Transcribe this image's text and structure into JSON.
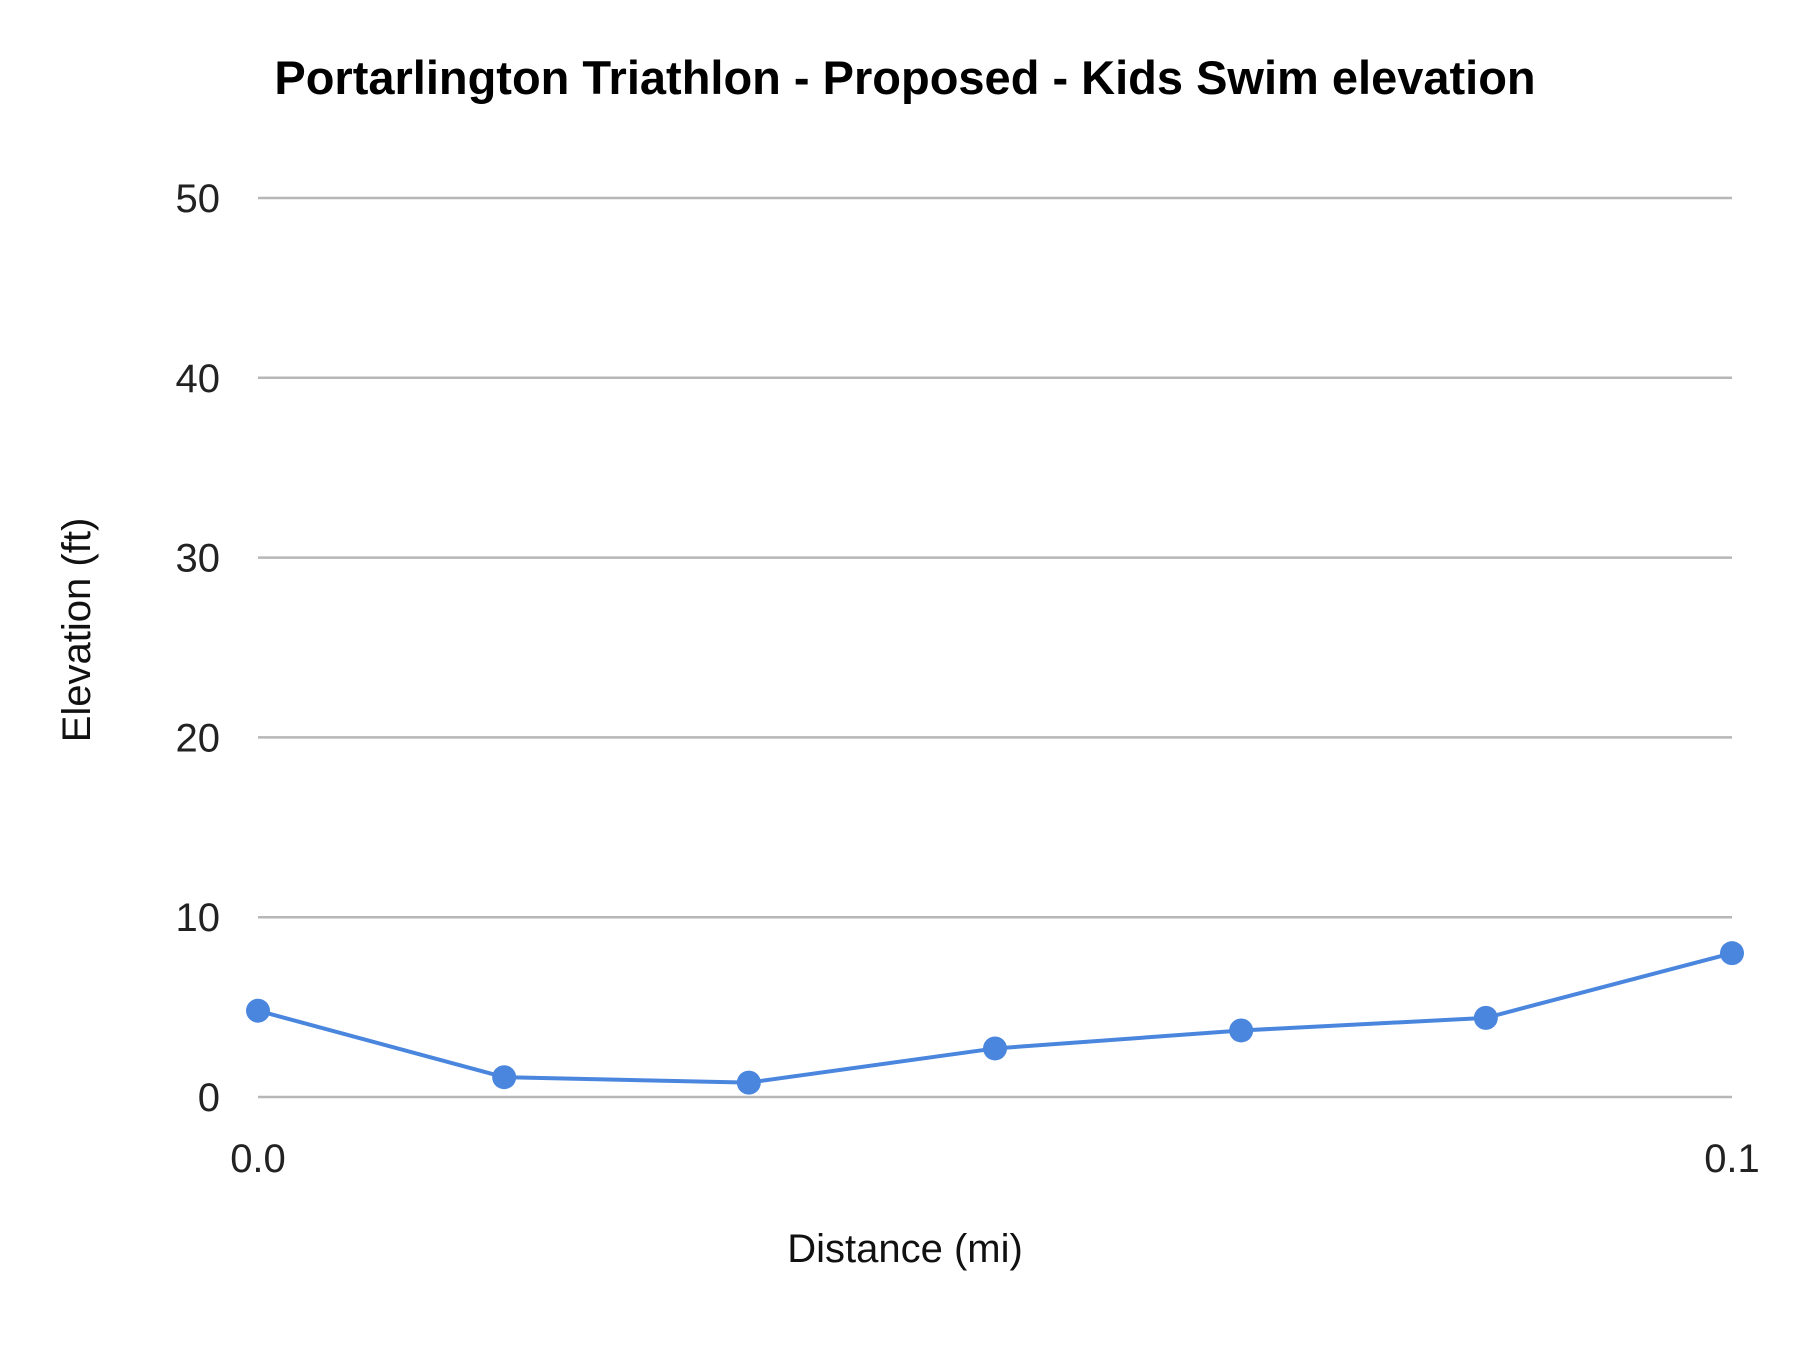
{
  "chart_data": {
    "type": "line",
    "title": "Portarlington Triathlon - Proposed  - Kids Swim  elevation",
    "xlabel": "Distance (mi)",
    "ylabel": "Elevation (ft)",
    "x_ticks": [
      "0.0",
      "0.1"
    ],
    "y_ticks": [
      "0",
      "10",
      "20",
      "30",
      "40",
      "50"
    ],
    "ylim": [
      0,
      50
    ],
    "xlim": [
      0.0,
      0.1
    ],
    "grid": true,
    "legend": "none",
    "series": [
      {
        "color": "#4a86de",
        "x": [
          0.0,
          0.0167,
          0.0333,
          0.05,
          0.0667,
          0.0833,
          0.1
        ],
        "y": [
          4.8,
          1.1,
          0.8,
          2.7,
          3.7,
          4.4,
          8.0
        ]
      }
    ]
  }
}
